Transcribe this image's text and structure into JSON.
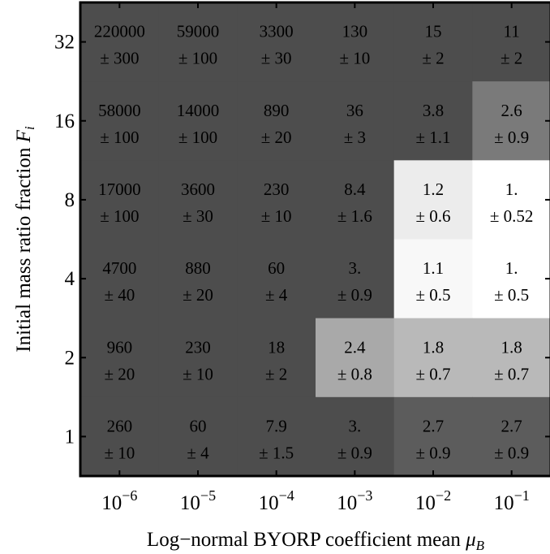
{
  "chart_data": {
    "type": "heatmap",
    "title": "",
    "xlabel": "Log−normal BYORP coefficient mean",
    "xlabel_symbol": "μ",
    "xlabel_symbol_sub": "B",
    "ylabel": "Initial mass ratio fraction",
    "ylabel_symbol": "F",
    "ylabel_symbol_sub": "i",
    "x_categories": [
      {
        "base": "10",
        "exp": "−6"
      },
      {
        "base": "10",
        "exp": "−5"
      },
      {
        "base": "10",
        "exp": "−4"
      },
      {
        "base": "10",
        "exp": "−3"
      },
      {
        "base": "10",
        "exp": "−2"
      },
      {
        "base": "10",
        "exp": "−1"
      }
    ],
    "y_categories": [
      "32",
      "16",
      "8",
      "4",
      "2",
      "1"
    ],
    "cells": [
      [
        {
          "value": "220000",
          "error": "± 300",
          "shade": "#4d4d4d"
        },
        {
          "value": "59000",
          "error": "± 100",
          "shade": "#4d4d4d"
        },
        {
          "value": "3300",
          "error": "± 30",
          "shade": "#4d4d4d"
        },
        {
          "value": "130",
          "error": "± 10",
          "shade": "#4d4d4d"
        },
        {
          "value": "15",
          "error": "± 2",
          "shade": "#4d4d4d"
        },
        {
          "value": "11",
          "error": "± 2",
          "shade": "#4d4d4d"
        }
      ],
      [
        {
          "value": "58000",
          "error": "± 100",
          "shade": "#4d4d4d"
        },
        {
          "value": "14000",
          "error": "± 100",
          "shade": "#4d4d4d"
        },
        {
          "value": "890",
          "error": "± 20",
          "shade": "#4d4d4d"
        },
        {
          "value": "36",
          "error": "± 3",
          "shade": "#4d4d4d"
        },
        {
          "value": "3.8",
          "error": "± 1.1",
          "shade": "#4d4d4d"
        },
        {
          "value": "2.6",
          "error": "± 0.9",
          "shade": "#7a7a7a"
        }
      ],
      [
        {
          "value": "17000",
          "error": "± 100",
          "shade": "#4d4d4d"
        },
        {
          "value": "3600",
          "error": "± 30",
          "shade": "#4d4d4d"
        },
        {
          "value": "230",
          "error": "± 10",
          "shade": "#4d4d4d"
        },
        {
          "value": "8.4",
          "error": "± 1.6",
          "shade": "#4d4d4d"
        },
        {
          "value": "1.2",
          "error": "± 0.6",
          "shade": "#ececec"
        },
        {
          "value": "1.",
          "error": "± 0.52",
          "shade": "#ffffff"
        }
      ],
      [
        {
          "value": "4700",
          "error": "± 40",
          "shade": "#4d4d4d"
        },
        {
          "value": "880",
          "error": "± 20",
          "shade": "#4d4d4d"
        },
        {
          "value": "60",
          "error": "± 4",
          "shade": "#4d4d4d"
        },
        {
          "value": "3.",
          "error": "± 0.9",
          "shade": "#4d4d4d"
        },
        {
          "value": "1.1",
          "error": "± 0.5",
          "shade": "#f8f8f8"
        },
        {
          "value": "1.",
          "error": "± 0.5",
          "shade": "#ffffff"
        }
      ],
      [
        {
          "value": "960",
          "error": "± 20",
          "shade": "#4d4d4d"
        },
        {
          "value": "230",
          "error": "± 10",
          "shade": "#4d4d4d"
        },
        {
          "value": "18",
          "error": "± 2",
          "shade": "#4d4d4d"
        },
        {
          "value": "2.4",
          "error": "± 0.8",
          "shade": "#a9a9a9"
        },
        {
          "value": "1.8",
          "error": "± 0.7",
          "shade": "#b9b9b9"
        },
        {
          "value": "1.8",
          "error": "± 0.7",
          "shade": "#b9b9b9"
        }
      ],
      [
        {
          "value": "260",
          "error": "± 10",
          "shade": "#4d4d4d"
        },
        {
          "value": "60",
          "error": "± 4",
          "shade": "#4d4d4d"
        },
        {
          "value": "7.9",
          "error": "± 1.5",
          "shade": "#4d4d4d"
        },
        {
          "value": "3.",
          "error": "± 0.9",
          "shade": "#4d4d4d"
        },
        {
          "value": "2.7",
          "error": "± 0.9",
          "shade": "#5c5c5c"
        },
        {
          "value": "2.7",
          "error": "± 0.9",
          "shade": "#5c5c5c"
        }
      ]
    ],
    "text_color_on_dark": "#000000",
    "text_color_on_light": "#000000",
    "frame_color": "#000000"
  }
}
